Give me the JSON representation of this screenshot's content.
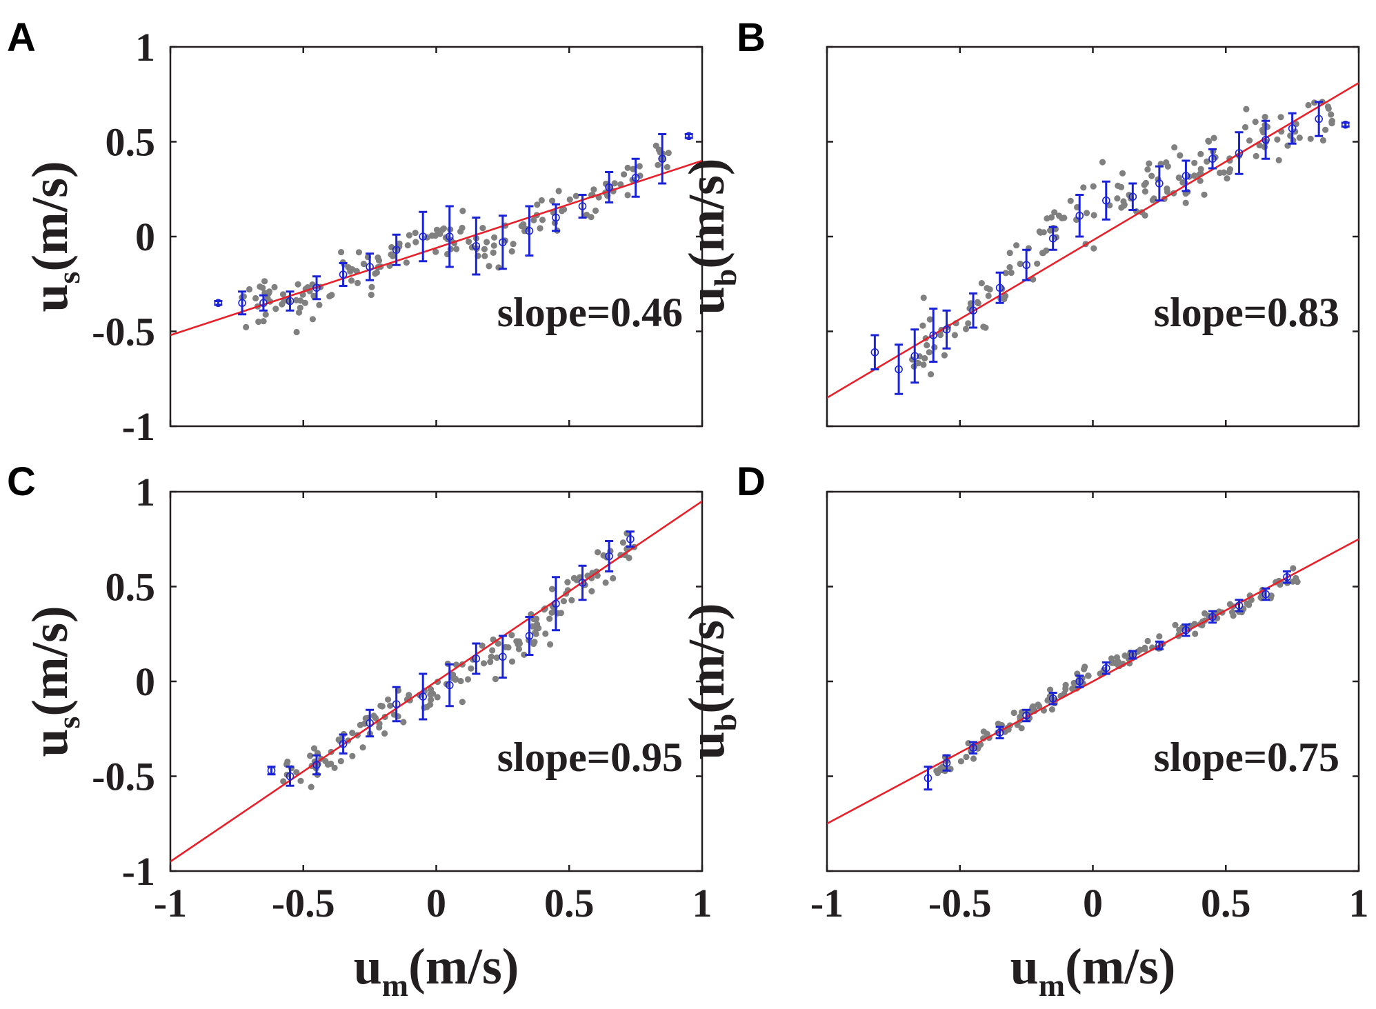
{
  "figure": {
    "colors": {
      "scatter": "#808080",
      "fit_line": "#e8202a",
      "error_bar": "#1a23d6",
      "axis": "#231f20"
    }
  },
  "chart_data": [
    {
      "panel": "A",
      "type": "scatter",
      "title": "",
      "xlabel": "",
      "ylabel": {
        "main": "u",
        "sub": "s",
        "unit": "(m/s)"
      },
      "xlim": [
        -1,
        1
      ],
      "ylim": [
        -1,
        1
      ],
      "xticks": [
        -1,
        -0.5,
        0,
        0.5,
        1
      ],
      "yticks": [
        -1,
        -0.5,
        0,
        0.5,
        1
      ],
      "xtick_labels": [],
      "ytick_labels": [
        "-1",
        "-0.5",
        "0",
        "0.5",
        "1"
      ],
      "grid": false,
      "annotation": "slope=0.46",
      "fit_line": {
        "slope": 0.46,
        "intercept": -0.06
      },
      "scatter_spread": 0.06,
      "scatter_x_range": [
        -0.75,
        0.88
      ],
      "scatter_count": 160,
      "binned_means": [
        {
          "x": -0.82,
          "y": -0.35,
          "err": 0.01
        },
        {
          "x": -0.73,
          "y": -0.35,
          "err": 0.06
        },
        {
          "x": -0.65,
          "y": -0.35,
          "err": 0.04
        },
        {
          "x": -0.55,
          "y": -0.34,
          "err": 0.05
        },
        {
          "x": -0.45,
          "y": -0.27,
          "err": 0.06
        },
        {
          "x": -0.35,
          "y": -0.2,
          "err": 0.06
        },
        {
          "x": -0.25,
          "y": -0.16,
          "err": 0.07
        },
        {
          "x": -0.15,
          "y": -0.07,
          "err": 0.08
        },
        {
          "x": -0.05,
          "y": 0.0,
          "err": 0.13
        },
        {
          "x": 0.05,
          "y": 0.0,
          "err": 0.16
        },
        {
          "x": 0.15,
          "y": -0.05,
          "err": 0.15
        },
        {
          "x": 0.25,
          "y": -0.03,
          "err": 0.14
        },
        {
          "x": 0.35,
          "y": 0.03,
          "err": 0.13
        },
        {
          "x": 0.45,
          "y": 0.1,
          "err": 0.07
        },
        {
          "x": 0.55,
          "y": 0.16,
          "err": 0.06
        },
        {
          "x": 0.65,
          "y": 0.26,
          "err": 0.08
        },
        {
          "x": 0.75,
          "y": 0.31,
          "err": 0.1
        },
        {
          "x": 0.85,
          "y": 0.41,
          "err": 0.13
        },
        {
          "x": 0.95,
          "y": 0.53,
          "err": 0.01
        }
      ]
    },
    {
      "panel": "B",
      "type": "scatter",
      "title": "",
      "xlabel": "",
      "ylabel": {
        "main": "u",
        "sub": "b",
        "unit": "(m/s)"
      },
      "xlim": [
        -1,
        1
      ],
      "ylim": [
        -1,
        1
      ],
      "xticks": [
        -1,
        -0.5,
        0,
        0.5,
        1
      ],
      "yticks": [
        -1,
        -0.5,
        0,
        0.5,
        1
      ],
      "xtick_labels": [],
      "ytick_labels": [],
      "grid": false,
      "annotation": "slope=0.83",
      "fit_line": {
        "slope": 0.83,
        "intercept": -0.02
      },
      "scatter_spread": 0.08,
      "scatter_x_range": [
        -0.72,
        0.9
      ],
      "scatter_count": 170,
      "binned_means": [
        {
          "x": -0.82,
          "y": -0.61,
          "err": 0.09
        },
        {
          "x": -0.73,
          "y": -0.7,
          "err": 0.13
        },
        {
          "x": -0.67,
          "y": -0.63,
          "err": 0.14
        },
        {
          "x": -0.6,
          "y": -0.52,
          "err": 0.14
        },
        {
          "x": -0.55,
          "y": -0.49,
          "err": 0.1
        },
        {
          "x": -0.45,
          "y": -0.39,
          "err": 0.09
        },
        {
          "x": -0.35,
          "y": -0.27,
          "err": 0.08
        },
        {
          "x": -0.25,
          "y": -0.15,
          "err": 0.08
        },
        {
          "x": -0.15,
          "y": -0.01,
          "err": 0.06
        },
        {
          "x": -0.05,
          "y": 0.11,
          "err": 0.11
        },
        {
          "x": 0.05,
          "y": 0.19,
          "err": 0.1
        },
        {
          "x": 0.15,
          "y": 0.21,
          "err": 0.07
        },
        {
          "x": 0.25,
          "y": 0.28,
          "err": 0.09
        },
        {
          "x": 0.35,
          "y": 0.32,
          "err": 0.08
        },
        {
          "x": 0.45,
          "y": 0.41,
          "err": 0.05
        },
        {
          "x": 0.55,
          "y": 0.44,
          "err": 0.11
        },
        {
          "x": 0.65,
          "y": 0.51,
          "err": 0.1
        },
        {
          "x": 0.75,
          "y": 0.57,
          "err": 0.08
        },
        {
          "x": 0.85,
          "y": 0.62,
          "err": 0.09
        },
        {
          "x": 0.95,
          "y": 0.59,
          "err": 0.01
        }
      ]
    },
    {
      "panel": "C",
      "type": "scatter",
      "title": "",
      "xlabel": {
        "main": "u",
        "sub": "m",
        "unit": "(m/s)"
      },
      "ylabel": {
        "main": "u",
        "sub": "s",
        "unit": "(m/s)"
      },
      "xlim": [
        -1,
        1
      ],
      "ylim": [
        -1,
        1
      ],
      "xticks": [
        -1,
        -0.5,
        0,
        0.5,
        1
      ],
      "yticks": [
        -1,
        -0.5,
        0,
        0.5,
        1
      ],
      "xtick_labels": [
        "-1",
        "-0.5",
        "0",
        "0.5",
        "1"
      ],
      "ytick_labels": [
        "-1",
        "-0.5",
        "0",
        "0.5",
        "1"
      ],
      "grid": false,
      "annotation": "slope=0.95",
      "fit_line": {
        "slope": 0.95,
        "intercept": 0.0
      },
      "scatter_spread": 0.06,
      "scatter_x_range": [
        -0.58,
        0.76
      ],
      "scatter_count": 150,
      "binned_means": [
        {
          "x": -0.62,
          "y": -0.47,
          "err": 0.02
        },
        {
          "x": -0.55,
          "y": -0.5,
          "err": 0.05
        },
        {
          "x": -0.45,
          "y": -0.44,
          "err": 0.05
        },
        {
          "x": -0.35,
          "y": -0.33,
          "err": 0.05
        },
        {
          "x": -0.25,
          "y": -0.22,
          "err": 0.07
        },
        {
          "x": -0.15,
          "y": -0.12,
          "err": 0.09
        },
        {
          "x": -0.05,
          "y": -0.08,
          "err": 0.12
        },
        {
          "x": 0.05,
          "y": -0.02,
          "err": 0.11
        },
        {
          "x": 0.15,
          "y": 0.12,
          "err": 0.08
        },
        {
          "x": 0.25,
          "y": 0.13,
          "err": 0.11
        },
        {
          "x": 0.35,
          "y": 0.24,
          "err": 0.1
        },
        {
          "x": 0.45,
          "y": 0.41,
          "err": 0.14
        },
        {
          "x": 0.55,
          "y": 0.52,
          "err": 0.09
        },
        {
          "x": 0.65,
          "y": 0.66,
          "err": 0.08
        },
        {
          "x": 0.73,
          "y": 0.75,
          "err": 0.04
        }
      ]
    },
    {
      "panel": "D",
      "type": "scatter",
      "title": "",
      "xlabel": {
        "main": "u",
        "sub": "m",
        "unit": "(m/s)"
      },
      "ylabel": {
        "main": "u",
        "sub": "b",
        "unit": "(m/s)"
      },
      "xlim": [
        -1,
        1
      ],
      "ylim": [
        -1,
        1
      ],
      "xticks": [
        -1,
        -0.5,
        0,
        0.5,
        1
      ],
      "yticks": [
        -1,
        -0.5,
        0,
        0.5,
        1
      ],
      "xtick_labels": [
        "-1",
        "-0.5",
        "0",
        "0.5",
        "1"
      ],
      "ytick_labels": [],
      "grid": false,
      "annotation": "slope=0.75",
      "fit_line": {
        "slope": 0.75,
        "intercept": 0.0
      },
      "scatter_spread": 0.025,
      "scatter_x_range": [
        -0.6,
        0.78
      ],
      "scatter_count": 150,
      "binned_means": [
        {
          "x": -0.62,
          "y": -0.51,
          "err": 0.06
        },
        {
          "x": -0.55,
          "y": -0.43,
          "err": 0.04
        },
        {
          "x": -0.45,
          "y": -0.35,
          "err": 0.03
        },
        {
          "x": -0.35,
          "y": -0.27,
          "err": 0.03
        },
        {
          "x": -0.25,
          "y": -0.18,
          "err": 0.03
        },
        {
          "x": -0.15,
          "y": -0.09,
          "err": 0.03
        },
        {
          "x": -0.05,
          "y": 0.0,
          "err": 0.03
        },
        {
          "x": 0.05,
          "y": 0.07,
          "err": 0.03
        },
        {
          "x": 0.15,
          "y": 0.14,
          "err": 0.02
        },
        {
          "x": 0.25,
          "y": 0.19,
          "err": 0.02
        },
        {
          "x": 0.35,
          "y": 0.27,
          "err": 0.03
        },
        {
          "x": 0.45,
          "y": 0.34,
          "err": 0.03
        },
        {
          "x": 0.55,
          "y": 0.4,
          "err": 0.03
        },
        {
          "x": 0.65,
          "y": 0.46,
          "err": 0.03
        },
        {
          "x": 0.73,
          "y": 0.55,
          "err": 0.03
        }
      ]
    }
  ]
}
